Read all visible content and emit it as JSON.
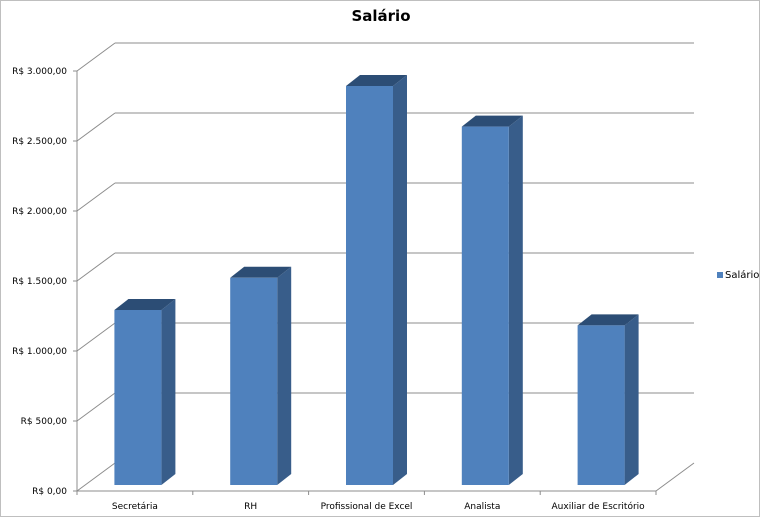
{
  "chart_data": {
    "type": "bar",
    "title": "Salário",
    "categories": [
      "Secretária",
      "RH",
      "Profissional de Excel",
      "Analista",
      "Auxiliar de Escritório"
    ],
    "series": [
      {
        "name": "Salário",
        "values": [
          1250,
          1480,
          2850,
          2560,
          1140
        ]
      }
    ],
    "ylim": [
      0,
      3000
    ],
    "yticks": [
      0,
      500,
      1000,
      1500,
      2000,
      2500,
      3000
    ],
    "ytick_labels": [
      "R$ 0,00",
      "R$ 500,00",
      "R$ 1.000,00",
      "R$ 1.500,00",
      "R$ 2.000,00",
      "R$ 2.500,00",
      "R$ 3.000,00"
    ],
    "grid": true,
    "legend_position": "right",
    "style": "3d-column",
    "colors": {
      "bar_front": "#4F81BD",
      "bar_side": "#385D8A",
      "bar_top": "#2C4D75",
      "grid": "#8c8c8c"
    }
  }
}
